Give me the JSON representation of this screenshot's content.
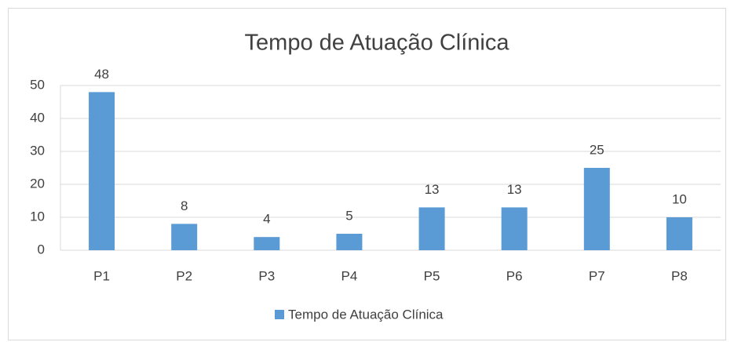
{
  "chart_data": {
    "type": "bar",
    "title": "Tempo de Atuação Clínica",
    "categories": [
      "P1",
      "P2",
      "P3",
      "P4",
      "P5",
      "P6",
      "P7",
      "P8"
    ],
    "series": [
      {
        "name": "Tempo de Atuação Clínica",
        "color": "#5b9bd5",
        "values": [
          48,
          8,
          4,
          5,
          13,
          13,
          25,
          10
        ]
      }
    ],
    "ylim": [
      0,
      50
    ],
    "yticks": [
      0,
      10,
      20,
      30,
      40,
      50
    ],
    "grid": true,
    "legend": "bottom",
    "data_labels": true
  }
}
